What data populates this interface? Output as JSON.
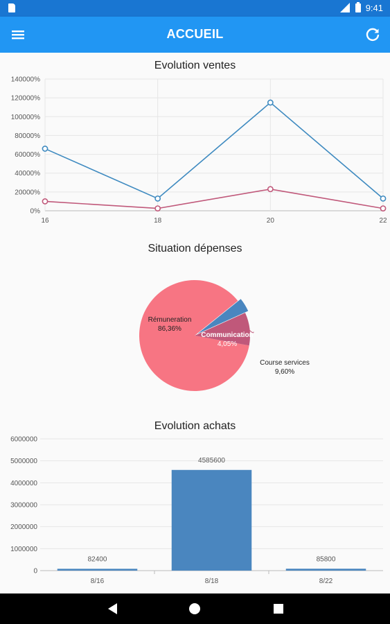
{
  "status_bar": {
    "time": "9:41"
  },
  "app_bar": {
    "title": "ACCUEIL",
    "menu_icon": "menu-icon",
    "refresh_icon": "refresh-icon"
  },
  "charts": {
    "ventes": {
      "title": "Evolution ventes"
    },
    "depenses": {
      "title": "Situation dépenses"
    },
    "achats": {
      "title": "Evolution achats"
    }
  },
  "chart_data": [
    {
      "type": "line",
      "title": "Evolution ventes",
      "x": [
        16,
        18,
        20,
        22
      ],
      "x_tick_labels": [
        "16",
        "18",
        "20",
        "22"
      ],
      "y_tick_labels": [
        "0%",
        "20000%",
        "40000%",
        "60000%",
        "80000%",
        "100000%",
        "120000%",
        "140000%"
      ],
      "ylim": [
        0,
        140000
      ],
      "grid": true,
      "series": [
        {
          "values": [
            66000,
            13000,
            115000,
            13000
          ],
          "color": "#3e8ac0"
        },
        {
          "values": [
            10000,
            2500,
            23000,
            2500
          ],
          "color": "#c0587a"
        }
      ]
    },
    {
      "type": "pie",
      "title": "Situation dépenses",
      "slices": [
        {
          "label": "Rémuneration",
          "value_label": "86,36%",
          "value": 86.36,
          "color": "#f77583"
        },
        {
          "label": "Communication",
          "value_label": "4,05%",
          "value": 4.05,
          "color": "#4a86bf"
        },
        {
          "label": "Course services",
          "value_label": "9,60%",
          "value": 9.6,
          "color": "#c0587a"
        }
      ]
    },
    {
      "type": "bar",
      "title": "Evolution achats",
      "categories": [
        "8/16",
        "8/18",
        "8/22"
      ],
      "values": [
        82400,
        4585600,
        85800
      ],
      "value_labels": [
        "82400",
        "4585600",
        "85800"
      ],
      "y_tick_labels": [
        "0",
        "1000000",
        "2000000",
        "3000000",
        "4000000",
        "5000000",
        "6000000"
      ],
      "ylim": [
        0,
        6000000
      ],
      "grid": true,
      "color": "#4a86bf"
    }
  ]
}
